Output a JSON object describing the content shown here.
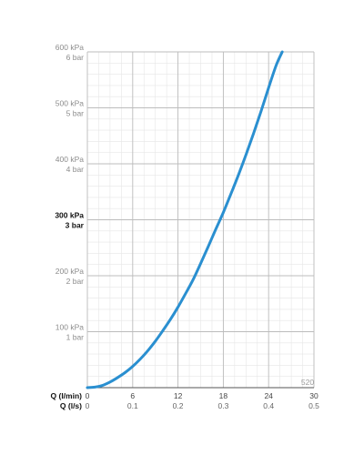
{
  "chart_data": {
    "type": "line",
    "title": "",
    "model_number": "520",
    "colors": {
      "curve": "#2a8fd0",
      "major_grid": "#bcbcbc",
      "minor_grid": "#e6e6e6",
      "axis": "#555555"
    },
    "grid": true,
    "x_axis": {
      "label": "Q (l/min)",
      "range": [
        0,
        30
      ],
      "ticks": [
        0,
        6,
        12,
        18,
        24,
        30
      ],
      "tick_labels": [
        "0",
        "6",
        "12",
        "18",
        "24",
        "30"
      ]
    },
    "x_axis_secondary": {
      "label": "Q (l/s)",
      "range": [
        0,
        0.5
      ],
      "ticks": [
        0,
        0.1,
        0.2,
        0.3,
        0.4,
        0.5
      ],
      "tick_labels": [
        "0",
        "0.1",
        "0.2",
        "0.3",
        "0.4",
        "0.5"
      ]
    },
    "y_axis": {
      "unit": "kPa",
      "range": [
        0,
        600
      ],
      "ticks": [
        {
          "value": 100,
          "kpa": "100 kPa",
          "bar": "1 bar",
          "emphasis": false
        },
        {
          "value": 200,
          "kpa": "200 kPa",
          "bar": "2 bar",
          "emphasis": false
        },
        {
          "value": 300,
          "kpa": "300 kPa",
          "bar": "3 bar",
          "emphasis": true
        },
        {
          "value": 400,
          "kpa": "400 kPa",
          "bar": "4 bar",
          "emphasis": false
        },
        {
          "value": 500,
          "kpa": "500 kPa",
          "bar": "5 bar",
          "emphasis": false
        },
        {
          "value": 600,
          "kpa": "600 kPa",
          "bar": "6 bar",
          "emphasis": false
        }
      ]
    },
    "series": [
      {
        "x": [
          0,
          1,
          2,
          3,
          4,
          5,
          6,
          7,
          8,
          9,
          10,
          11,
          12,
          13,
          14,
          15,
          16,
          17,
          18,
          19,
          20,
          21,
          22,
          23,
          24,
          25,
          25.8
        ],
        "y": [
          0,
          1,
          4,
          10,
          18,
          27,
          38,
          51,
          66,
          83,
          102,
          122,
          144,
          168,
          193,
          222,
          252,
          283,
          313,
          346,
          380,
          416,
          454,
          494,
          536,
          576,
          600
        ]
      }
    ]
  }
}
